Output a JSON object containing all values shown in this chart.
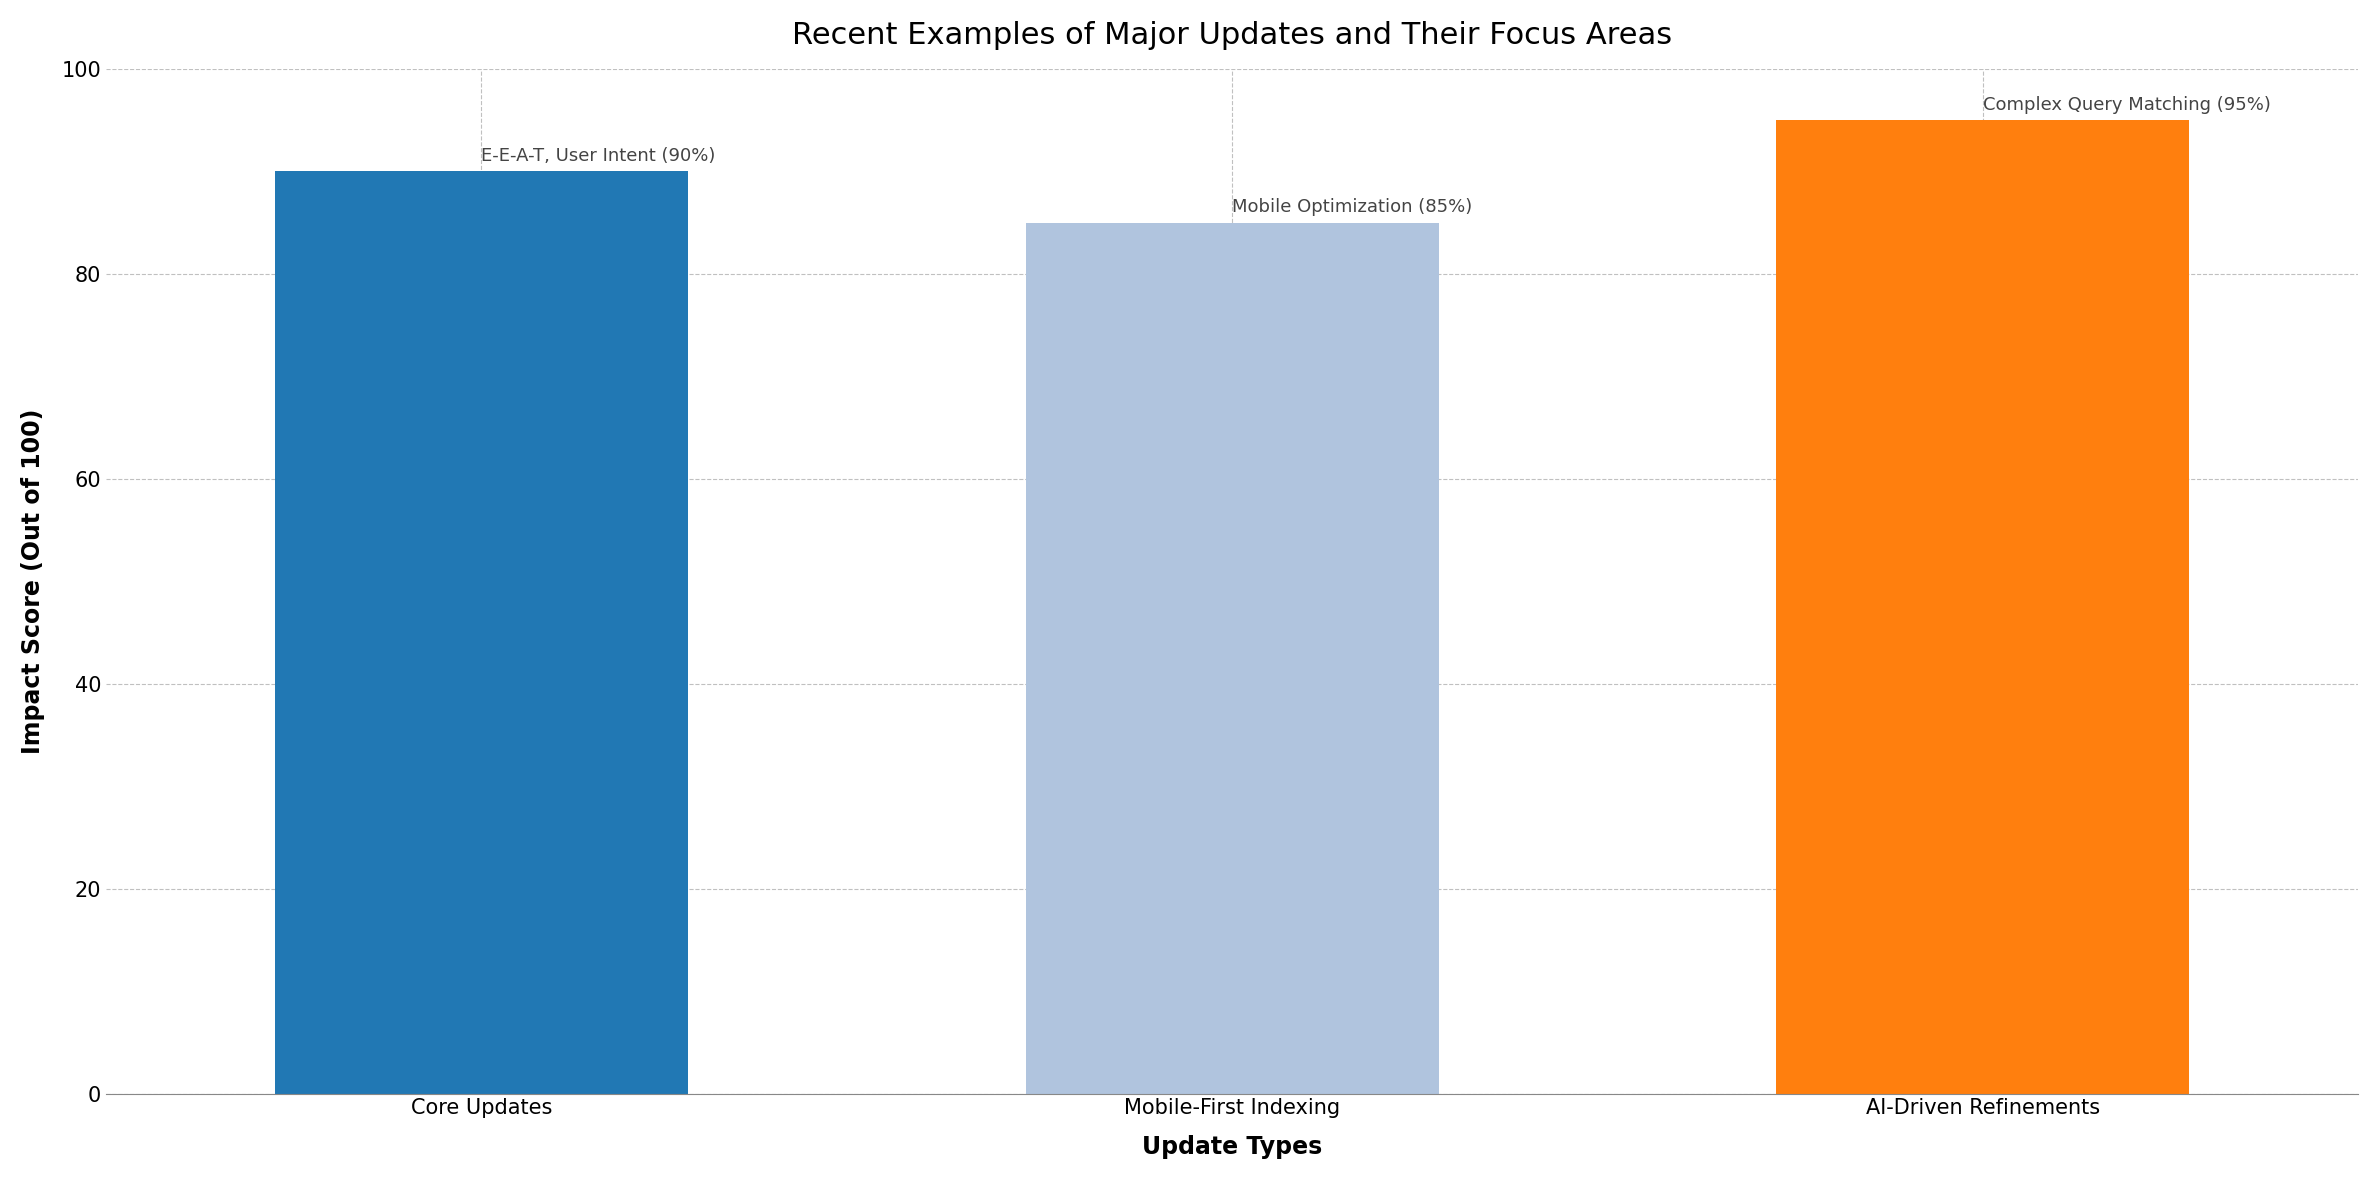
{
  "title": "Recent Examples of Major Updates and Their Focus Areas",
  "categories": [
    "Core Updates",
    "Mobile-First Indexing",
    "AI-Driven Refinements"
  ],
  "values": [
    90,
    85,
    95
  ],
  "bar_colors": [
    "#2178b4",
    "#b0c4de",
    "#ff7f0e"
  ],
  "annotations": [
    "E-E-A-T, User Intent (90%)",
    "Mobile Optimization (85%)",
    "Complex Query Matching (95%)"
  ],
  "xlabel": "Update Types",
  "ylabel": "Impact Score (Out of 100)",
  "ylim": [
    0,
    100
  ],
  "yticks": [
    0,
    20,
    40,
    60,
    80,
    100
  ],
  "title_fontsize": 22,
  "axis_label_fontsize": 17,
  "tick_fontsize": 15,
  "annotation_fontsize": 13,
  "background_color": "#ffffff",
  "grid_color": "#c0c0c0",
  "spine_color": "#888888"
}
